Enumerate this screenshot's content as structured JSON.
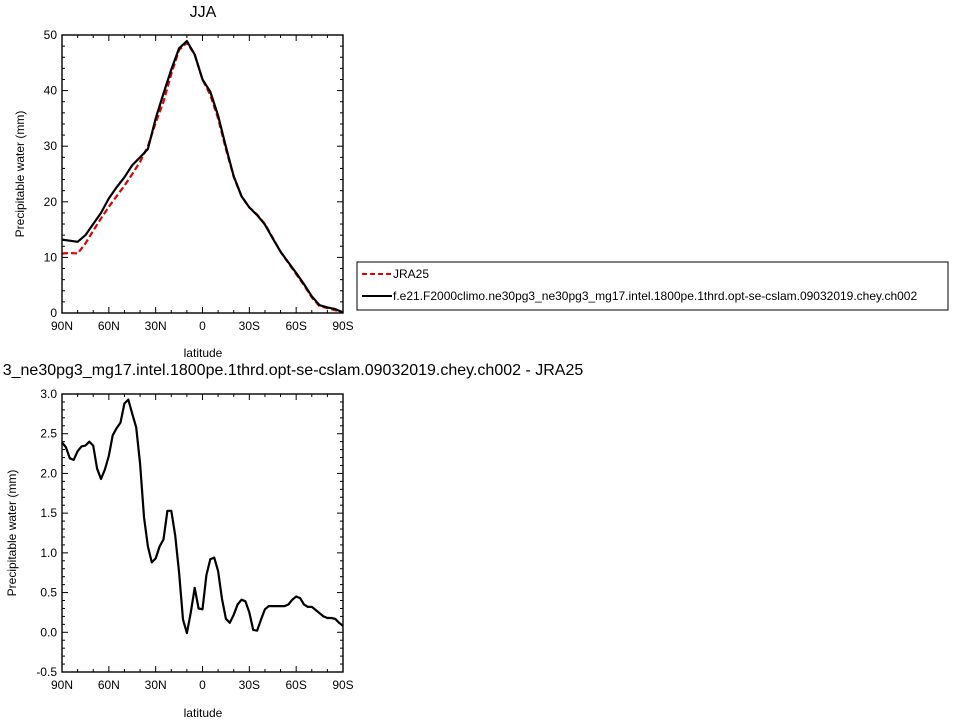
{
  "chart_data": [
    {
      "type": "line",
      "title": "JJA",
      "xlabel": "latitude",
      "ylabel": "Precipitable water (mm)",
      "xlim": [
        90,
        -90
      ],
      "ylim": [
        0,
        50
      ],
      "x_ticks": [
        90,
        60,
        30,
        0,
        -30,
        -60,
        -90
      ],
      "x_tick_labels": [
        "90N",
        "60N",
        "30N",
        "0",
        "30S",
        "60S",
        "90S"
      ],
      "y_ticks": [
        0,
        10,
        20,
        30,
        40,
        50
      ],
      "y_tick_labels": [
        "0",
        "10",
        "20",
        "30",
        "40",
        "50"
      ],
      "legend": {
        "placement": "right",
        "entries": [
          {
            "label": "JRA25",
            "color": "#e00000",
            "dash": "dashed"
          },
          {
            "label": "f.e21.F2000climo.ne30pg3_ne30pg3_mg17.intel.1800pe.1thrd.opt-se-cslam.09032019.chey.ch002",
            "color": "#000000",
            "dash": "solid"
          }
        ]
      },
      "x": [
        90,
        85,
        80,
        75,
        70,
        65,
        60,
        55,
        50,
        45,
        40,
        35,
        30,
        25,
        20,
        15,
        10,
        5,
        0,
        -5,
        -10,
        -15,
        -20,
        -25,
        -30,
        -35,
        -40,
        -45,
        -50,
        -55,
        -60,
        -65,
        -70,
        -75,
        -80,
        -85,
        -90
      ],
      "series": [
        {
          "name": "JRA25",
          "color": "#e00000",
          "dash": "dashed",
          "values": [
            10.7,
            10.8,
            10.7,
            12.5,
            14.8,
            17.0,
            19.1,
            21.0,
            22.9,
            25.0,
            27.2,
            30.0,
            34.2,
            38.0,
            43.0,
            47.3,
            48.6,
            46.5,
            42.0,
            39.2,
            35.0,
            29.5,
            24.5,
            21.0,
            19.0,
            17.7,
            16.0,
            13.5,
            11.0,
            9.0,
            7.0,
            5.0,
            2.8,
            1.2,
            0.9,
            0.5,
            0.1
          ]
        },
        {
          "name": "f.e21.F2000climo.ne30pg3_ne30pg3_mg17.intel.1800pe.1thrd.opt-se-cslam.09032019.chey.ch002",
          "color": "#000000",
          "dash": "solid",
          "values": [
            13.2,
            13.0,
            12.8,
            14.0,
            16.0,
            18.0,
            20.6,
            22.6,
            24.4,
            26.6,
            28.0,
            29.5,
            35.0,
            39.5,
            43.8,
            47.6,
            48.9,
            46.5,
            42.0,
            39.8,
            35.5,
            29.9,
            24.6,
            21.0,
            19.0,
            17.6,
            15.9,
            13.4,
            11.0,
            9.1,
            7.2,
            5.2,
            3.0,
            1.4,
            1.0,
            0.7,
            0.1
          ]
        }
      ]
    },
    {
      "type": "line",
      "title": "3_ne30pg3_mg17.intel.1800pe.1thrd.opt-se-cslam.09032019.chey.ch002 - JRA25",
      "xlabel": "latitude",
      "ylabel": "Precipitable water (mm)",
      "xlim": [
        90,
        -90
      ],
      "ylim": [
        -0.5,
        3.0
      ],
      "x_ticks": [
        90,
        60,
        30,
        0,
        -30,
        -60,
        -90
      ],
      "x_tick_labels": [
        "90N",
        "60N",
        "30N",
        "0",
        "30S",
        "60S",
        "90S"
      ],
      "y_ticks": [
        -0.5,
        0.0,
        0.5,
        1.0,
        1.5,
        2.0,
        2.5,
        3.0
      ],
      "y_tick_labels": [
        "-0.5",
        "0.0",
        "0.5",
        "1.0",
        "1.5",
        "2.0",
        "2.5",
        "3.0"
      ],
      "x": [
        90,
        87.5,
        85,
        82.5,
        80,
        77.5,
        75,
        72.5,
        70,
        67.5,
        65,
        62.5,
        60,
        57.5,
        55,
        52.5,
        50,
        47.5,
        45,
        42.5,
        40,
        37.5,
        35,
        32.5,
        30,
        27.5,
        25,
        22.5,
        20,
        17.5,
        15,
        12.5,
        10,
        7.5,
        5,
        2.5,
        0,
        -2.5,
        -5,
        -7.5,
        -10,
        -12.5,
        -15,
        -17.5,
        -20,
        -22.5,
        -25,
        -27.5,
        -30,
        -32.5,
        -35,
        -37.5,
        -40,
        -42.5,
        -45,
        -47.5,
        -50,
        -52.5,
        -55,
        -57.5,
        -60,
        -62.5,
        -65,
        -67.5,
        -70,
        -72.5,
        -75,
        -77.5,
        -80,
        -82.5,
        -85,
        -87.5,
        -90
      ],
      "series": [
        {
          "color": "#000000",
          "dash": "solid",
          "values": [
            2.39,
            2.33,
            2.19,
            2.17,
            2.28,
            2.34,
            2.35,
            2.4,
            2.35,
            2.06,
            1.93,
            2.05,
            2.22,
            2.48,
            2.57,
            2.64,
            2.88,
            2.93,
            2.75,
            2.58,
            2.12,
            1.45,
            1.08,
            0.88,
            0.93,
            1.08,
            1.17,
            1.53,
            1.53,
            1.22,
            0.75,
            0.16,
            -0.01,
            0.25,
            0.56,
            0.3,
            0.29,
            0.72,
            0.92,
            0.94,
            0.77,
            0.42,
            0.17,
            0.12,
            0.22,
            0.35,
            0.41,
            0.39,
            0.25,
            0.03,
            0.02,
            0.16,
            0.29,
            0.33,
            0.33,
            0.33,
            0.33,
            0.33,
            0.35,
            0.41,
            0.45,
            0.43,
            0.35,
            0.32,
            0.32,
            0.28,
            0.24,
            0.2,
            0.18,
            0.18,
            0.17,
            0.12,
            0.08
          ]
        }
      ]
    }
  ]
}
